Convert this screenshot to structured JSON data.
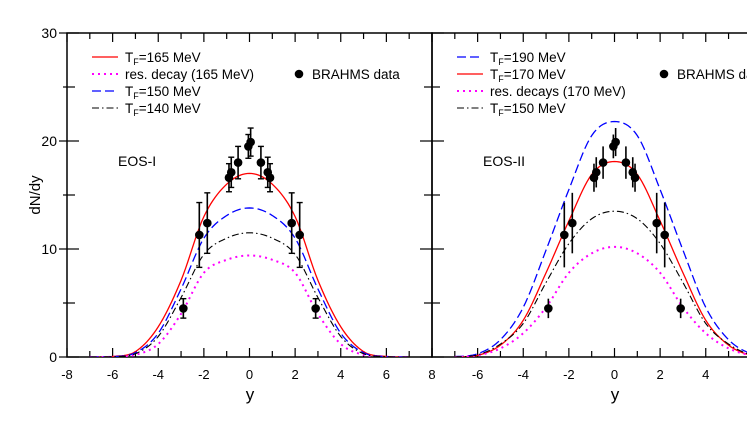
{
  "chart_data": [
    {
      "type": "line",
      "panel_label": "EOS-I",
      "xlabel": "y",
      "ylabel": "dN/dy",
      "xlim": [
        -8,
        8
      ],
      "ylim": [
        0,
        30
      ],
      "x_ticks": [
        "-8",
        "-6",
        "-4",
        "-2",
        "0",
        "2",
        "4",
        "6",
        "8"
      ],
      "y_ticks": [
        "0",
        "10",
        "20",
        "30"
      ],
      "grid": false,
      "legend_position": "top-left",
      "legend": [
        {
          "base": "T",
          "sub": "F",
          "text": "=165 MeV",
          "series": 0
        },
        {
          "text": "res. decay (165 MeV)",
          "series": 1
        },
        {
          "base": "T",
          "sub": "F",
          "text": "=150 MeV",
          "series": 2
        },
        {
          "base": "T",
          "sub": "F",
          "text": "=140 MeV",
          "series": 3
        }
      ],
      "data_legend": "BRAHMS data",
      "x": [
        -7,
        -6,
        -5,
        -4,
        -3,
        -2,
        -1,
        0,
        1,
        2,
        3,
        4,
        5,
        6,
        7
      ],
      "series": [
        {
          "name": "T_F=165 MeV",
          "color": "#ff0000",
          "style": "solid",
          "half_values": [
            17,
            16.0,
            13.0,
            7.1,
            2.8,
            0.5,
            0.05,
            0
          ]
        },
        {
          "name": "res. decay (165 MeV)",
          "color": "#ff00ff",
          "style": "dotted",
          "half_values": [
            9.4,
            9.0,
            7.8,
            4.0,
            1.2,
            0.2,
            0.02,
            0
          ]
        },
        {
          "name": "T_F=150 MeV",
          "color": "#0000ff",
          "style": "dashed",
          "half_values": [
            13.8,
            13.1,
            11.0,
            6.3,
            2.2,
            0.4,
            0.03,
            0
          ]
        },
        {
          "name": "T_F=140 MeV",
          "color": "#000000",
          "style": "dashdot",
          "half_values": [
            11.5,
            11.0,
            9.5,
            5.5,
            1.9,
            0.3,
            0.03,
            0
          ]
        }
      ]
    },
    {
      "type": "line",
      "panel_label": "EOS-II",
      "xlabel": "y",
      "xlim": [
        -8,
        8
      ],
      "ylim": [
        0,
        30
      ],
      "x_ticks": [
        "-6",
        "-4",
        "-2",
        "0",
        "2",
        "4"
      ],
      "grid": false,
      "legend_position": "top-left",
      "legend": [
        {
          "base": "T",
          "sub": "F",
          "text": "=190 MeV",
          "series": 0
        },
        {
          "base": "T",
          "sub": "F",
          "text": "=170 MeV",
          "series": 1
        },
        {
          "text": "res. decays (170 MeV)",
          "series": 2
        },
        {
          "base": "T",
          "sub": "F",
          "text": "=150 MeV",
          "series": 3
        }
      ],
      "data_legend": "BRAHMS data",
      "series": [
        {
          "name": "T_F=190 MeV",
          "color": "#0000ff",
          "style": "dashed",
          "half_values": [
            21.8,
            20.5,
            15.5,
            9.9,
            4.6,
            1.6,
            0.3,
            0.03
          ]
        },
        {
          "name": "T_F=170 MeV",
          "color": "#ff0000",
          "style": "solid",
          "half_values": [
            18.1,
            16.9,
            12.6,
            7.8,
            3.4,
            1.1,
            0.15,
            0
          ]
        },
        {
          "name": "res. decays (170 MeV)",
          "color": "#ff00ff",
          "style": "dotted",
          "half_values": [
            10.2,
            9.6,
            7.8,
            4.6,
            2.2,
            0.8,
            0.15,
            0
          ]
        },
        {
          "name": "T_F=150 MeV",
          "color": "#000000",
          "style": "dashdot",
          "half_values": [
            13.5,
            12.8,
            10.5,
            6.9,
            3.1,
            1.2,
            0.2,
            0
          ]
        }
      ]
    }
  ],
  "brahms_data": [
    {
      "y": -2.9,
      "v": 4.5,
      "err": 0.9
    },
    {
      "y": -2.2,
      "v": 11.3,
      "err": 3.0
    },
    {
      "y": -1.85,
      "v": 12.4,
      "err": 2.8
    },
    {
      "y": -0.9,
      "v": 16.6,
      "err": 1.3
    },
    {
      "y": -0.8,
      "v": 17.1,
      "err": 1.4
    },
    {
      "y": -0.5,
      "v": 18.0,
      "err": 1.5
    },
    {
      "y": -0.05,
      "v": 19.5,
      "err": 1.1
    },
    {
      "y": 0.05,
      "v": 19.9,
      "err": 1.3
    },
    {
      "y": 0.5,
      "v": 18.0,
      "err": 1.5
    },
    {
      "y": 0.8,
      "v": 17.1,
      "err": 1.4
    },
    {
      "y": 0.9,
      "v": 16.6,
      "err": 1.3
    },
    {
      "y": 1.85,
      "v": 12.4,
      "err": 2.8
    },
    {
      "y": 2.2,
      "v": 11.3,
      "err": 3.0
    },
    {
      "y": 2.9,
      "v": 4.5,
      "err": 0.9
    }
  ]
}
